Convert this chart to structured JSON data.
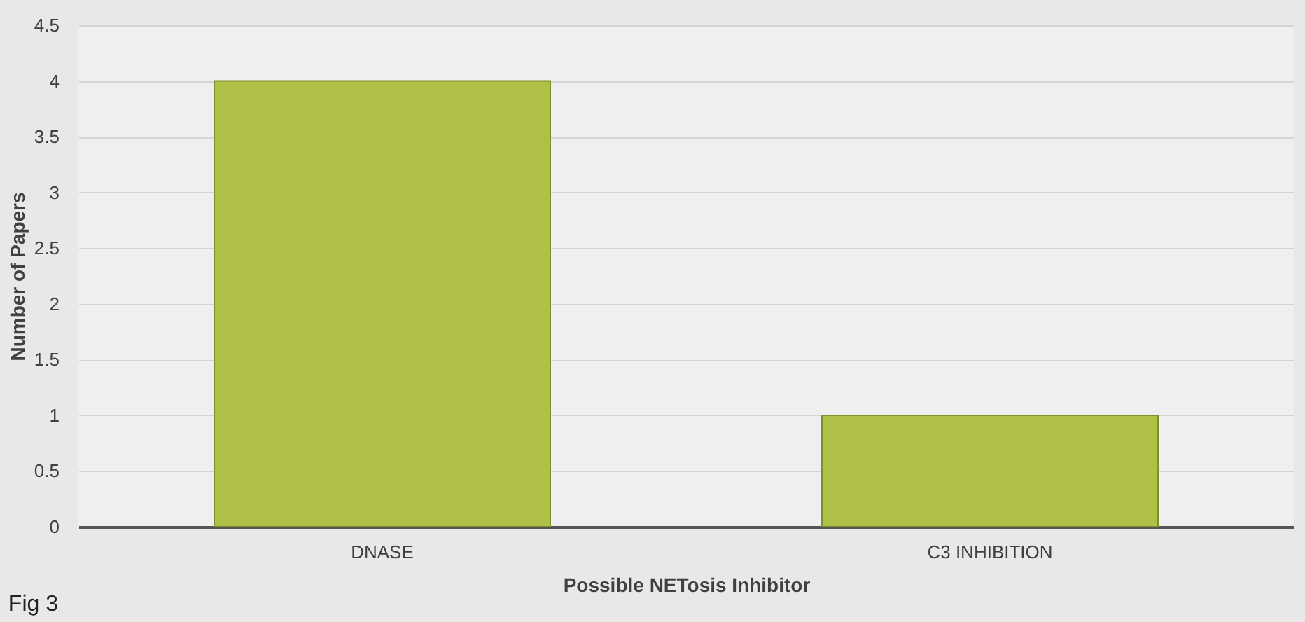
{
  "chart_data": {
    "type": "bar",
    "categories": [
      "DNASE",
      "C3 INHIBITION"
    ],
    "values": [
      4,
      1
    ],
    "color": "#b0bf45",
    "xlabel": "Possible NETosis Inhibitor",
    "ylabel": "Number of Papers",
    "ylim": [
      0,
      4.5
    ],
    "yticks": [
      0,
      0.5,
      1,
      1.5,
      2,
      2.5,
      3,
      3.5,
      4,
      4.5
    ],
    "grid": "y",
    "annotations": [
      "Fig 3"
    ]
  }
}
